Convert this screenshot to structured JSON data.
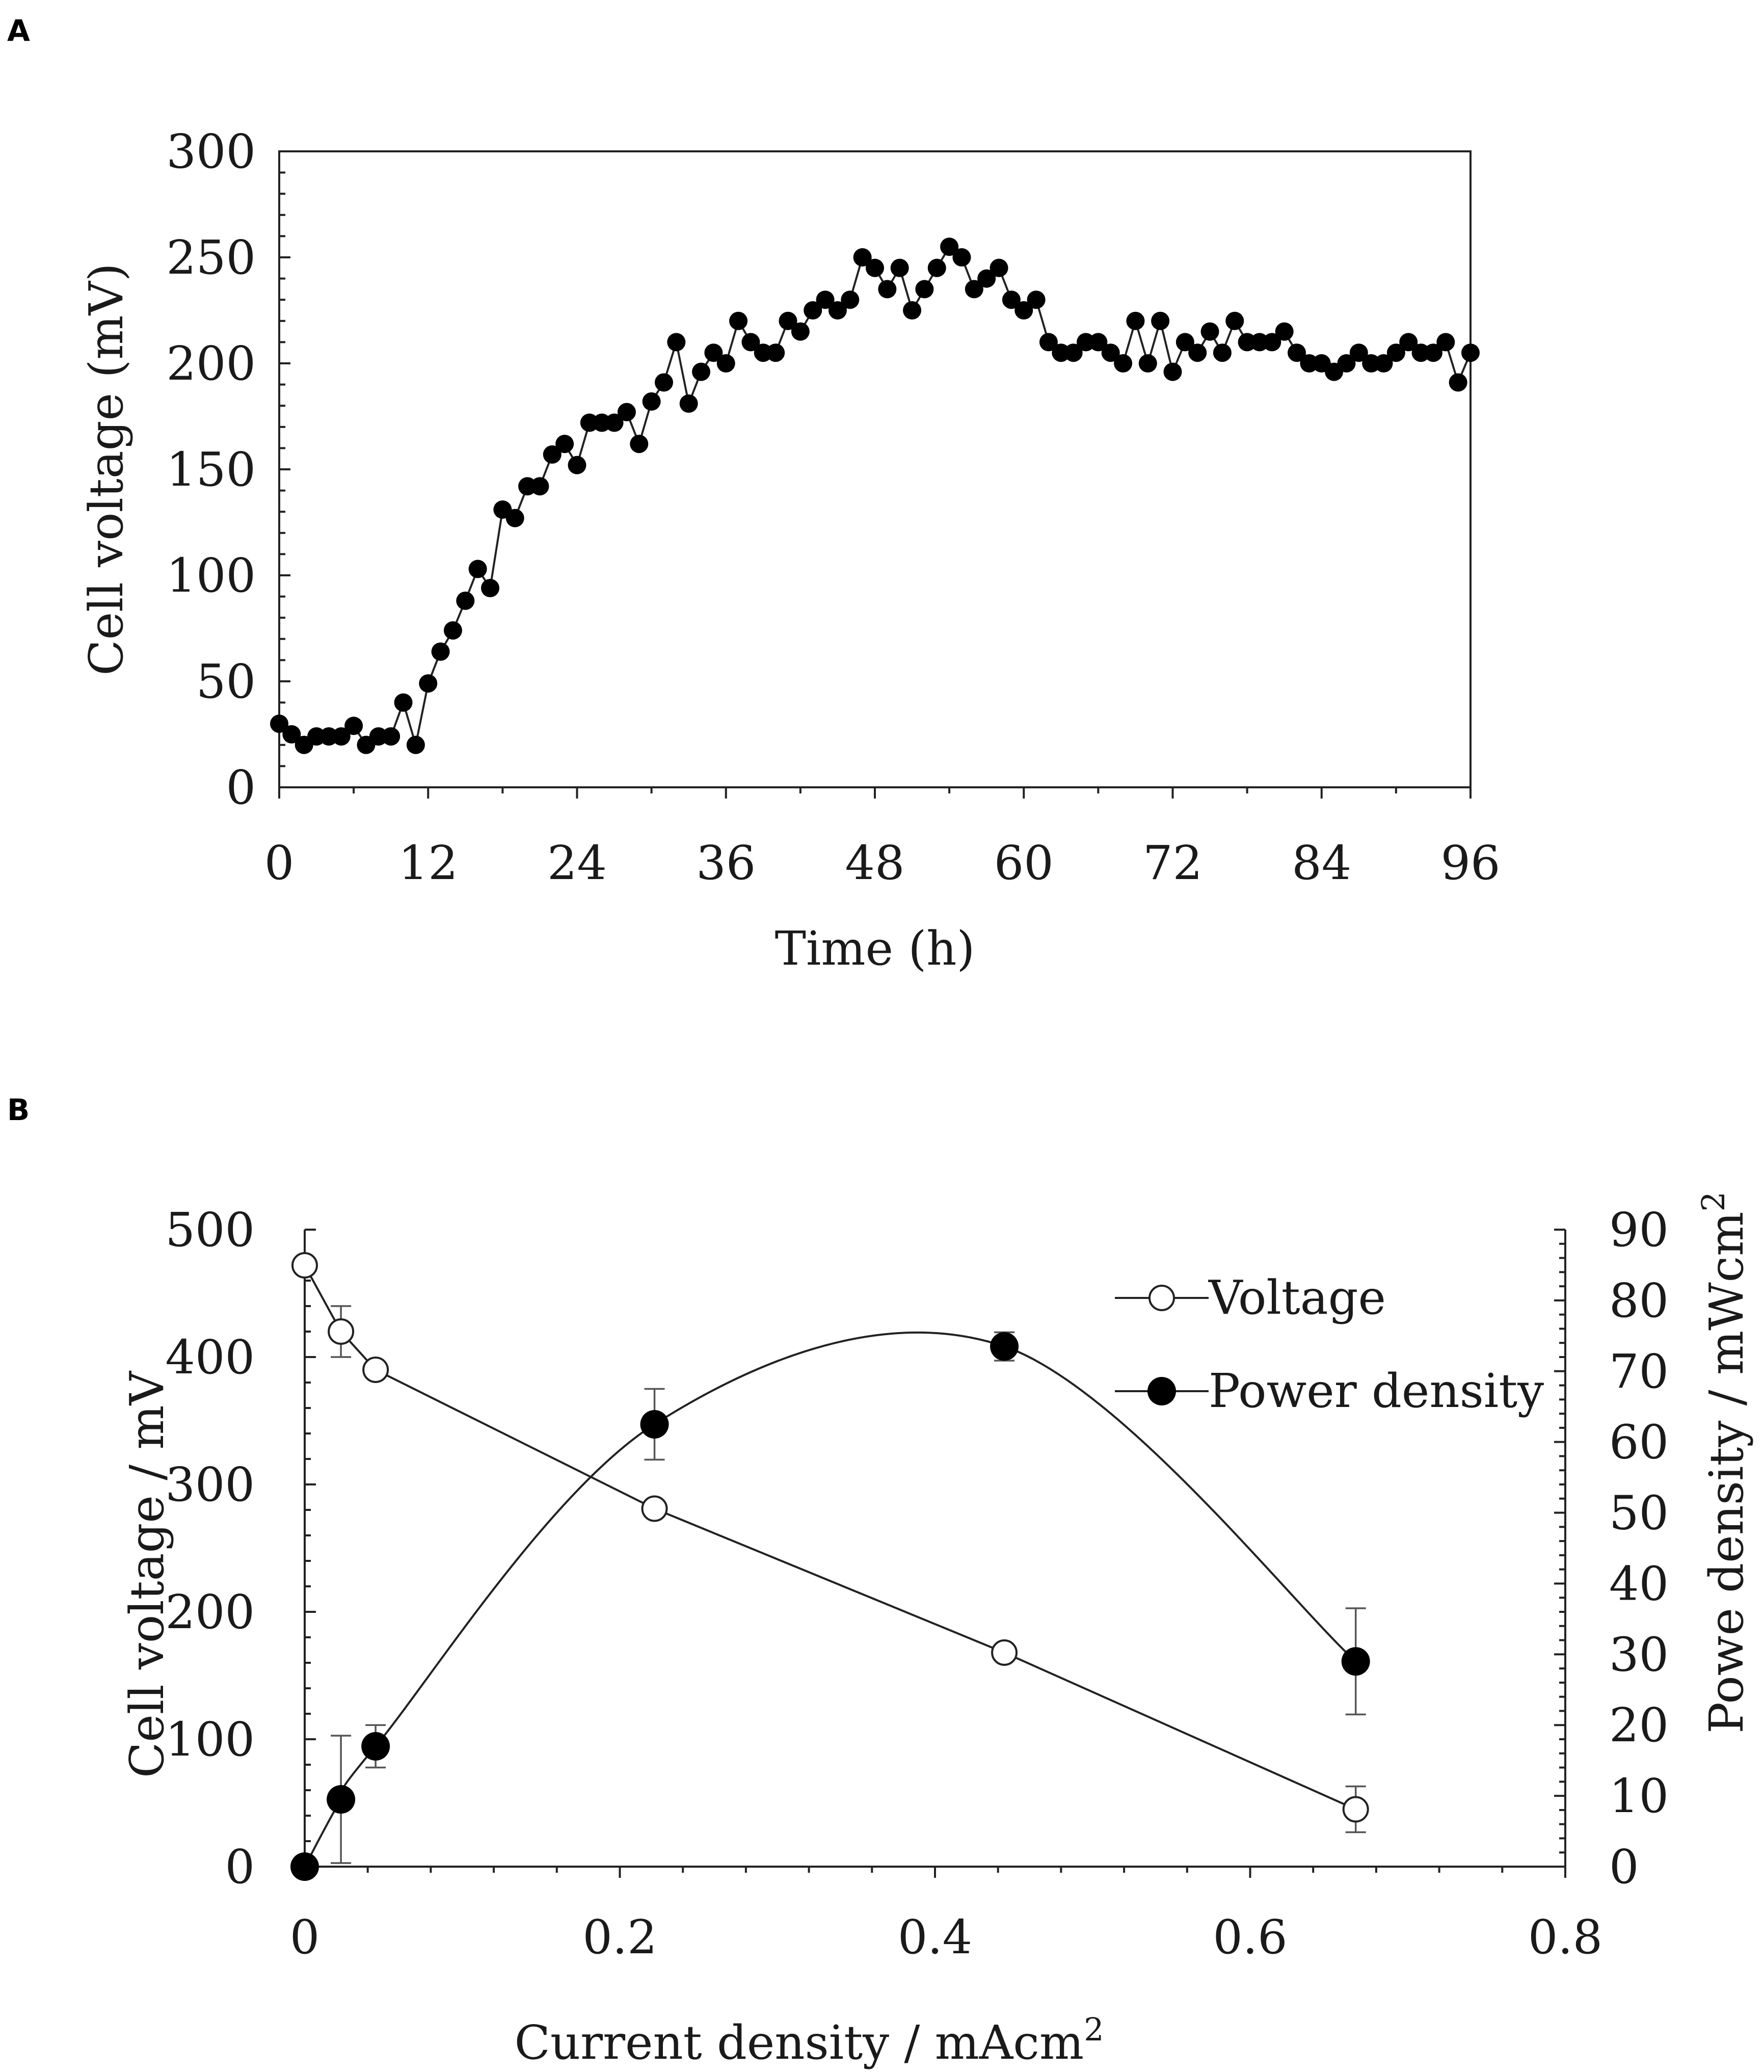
{
  "chart_data": [
    {
      "panel": "A",
      "type": "line",
      "title": "",
      "xlabel": "Time (h)",
      "ylabel": "Cell voltage (mV)",
      "xlim": [
        0,
        96
      ],
      "ylim": [
        0,
        300
      ],
      "xticks": [
        0,
        12,
        24,
        36,
        48,
        60,
        72,
        84,
        96
      ],
      "yticks": [
        0,
        50,
        100,
        150,
        200,
        250,
        300
      ],
      "grid": false,
      "series": [
        {
          "name": "Cell voltage",
          "marker": "filled-circle",
          "x": [
            0,
            1,
            2,
            3,
            4,
            5,
            6,
            7,
            8,
            9,
            10,
            11,
            12,
            13,
            14,
            15,
            16,
            17,
            18,
            19,
            20,
            21,
            22,
            23,
            24,
            25,
            26,
            27,
            28,
            29,
            30,
            31,
            32,
            33,
            34,
            35,
            36,
            37,
            38,
            39,
            40,
            41,
            42,
            43,
            44,
            45,
            46,
            47,
            48,
            49,
            50,
            51,
            52,
            53,
            54,
            55,
            56,
            57,
            58,
            59,
            60,
            61,
            62,
            63,
            64,
            65,
            66,
            67,
            68,
            69,
            70,
            71,
            72,
            73,
            74,
            75,
            76,
            77,
            78,
            79,
            80,
            81,
            82,
            83,
            84,
            85,
            86,
            87,
            88,
            89,
            90,
            91,
            92,
            93,
            94,
            95,
            96
          ],
          "y": [
            30,
            25,
            20,
            24,
            24,
            24,
            29,
            20,
            24,
            24,
            40,
            20,
            49,
            64,
            74,
            88,
            103,
            94,
            131,
            127,
            142,
            142,
            157,
            162,
            152,
            172,
            172,
            172,
            177,
            162,
            182,
            191,
            210,
            181,
            196,
            205,
            200,
            220,
            210,
            205,
            205,
            220,
            215,
            225,
            230,
            225,
            230,
            250,
            245,
            235,
            245,
            225,
            235,
            245,
            255,
            250,
            235,
            240,
            245,
            230,
            225,
            230,
            210,
            205,
            205,
            210,
            210,
            205,
            200,
            220,
            200,
            220,
            196,
            210,
            205,
            215,
            205,
            220,
            210,
            210,
            210,
            215,
            205,
            200,
            200,
            196,
            200,
            205,
            200,
            200,
            205,
            210,
            205,
            205,
            210,
            191,
            205
          ]
        }
      ]
    },
    {
      "panel": "B",
      "type": "line",
      "title": "",
      "xlabel": "Current density / mAcm",
      "xlabel_superscript": "2",
      "ylabel": "Cell voltage / mV",
      "y2label": "Powe density / mWcm",
      "y2label_superscript": "2",
      "xlim": [
        0,
        0.8
      ],
      "ylim": [
        0,
        500
      ],
      "y2lim": [
        0,
        90
      ],
      "xticks": [
        0,
        0.2,
        0.4,
        0.6,
        0.8
      ],
      "xtick_labels": [
        "0",
        "0.2",
        "0.4",
        "0.6",
        "0.8"
      ],
      "yticks": [
        0,
        100,
        200,
        300,
        400,
        500
      ],
      "y2ticks": [
        0,
        10,
        20,
        30,
        40,
        50,
        60,
        70,
        80,
        90
      ],
      "grid": false,
      "legend_position": "top-right",
      "series": [
        {
          "name": "Voltage",
          "axis": "left",
          "marker": "open-circle",
          "curve": "straight",
          "x": [
            0,
            0.023,
            0.045,
            0.222,
            0.444,
            0.667
          ],
          "y": [
            472,
            420,
            390,
            281,
            168,
            45
          ],
          "err": [
            0,
            20,
            0,
            0,
            0,
            18
          ]
        },
        {
          "name": "Power density",
          "axis": "right",
          "marker": "filled-circle",
          "curve": "smooth",
          "x": [
            0,
            0.023,
            0.045,
            0.222,
            0.444,
            0.667
          ],
          "y": [
            0,
            9.5,
            17,
            62.5,
            73.5,
            29
          ],
          "err": [
            0,
            9,
            3,
            5,
            2,
            7.5
          ]
        }
      ]
    }
  ]
}
